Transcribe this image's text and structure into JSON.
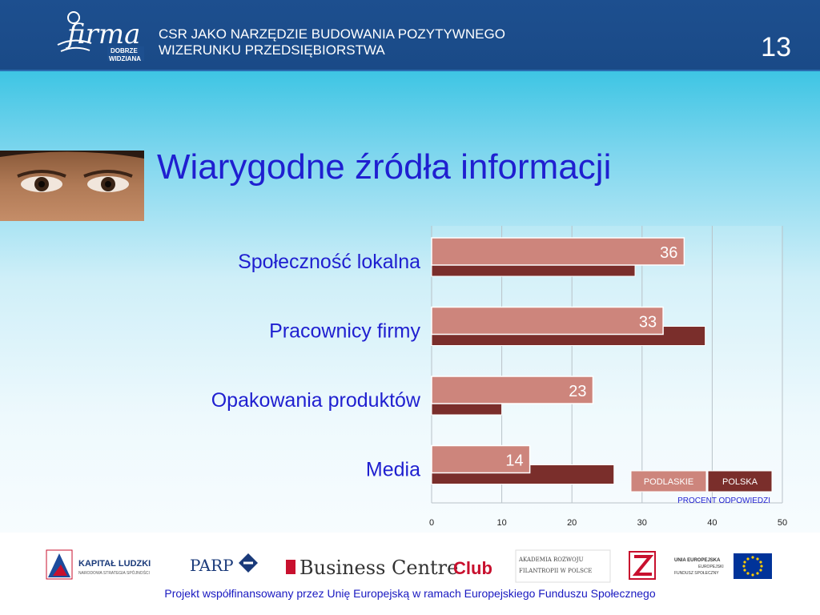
{
  "header": {
    "logo_text": "firma",
    "logo_subtext": [
      "DOBRZE",
      "WIDZIANA"
    ],
    "title_line1": "CSR JAKO NARZĘDZIE  BUDOWANIA POZYTYWNEGO",
    "title_line2": "WIZERUNKU PRZEDSIĘBIORSTWA",
    "page_number": "13"
  },
  "slide": {
    "title": "Wiarygodne źródła informacji"
  },
  "chart_data": {
    "type": "bar",
    "orientation": "horizontal",
    "categories": [
      "Społeczność lokalna",
      "Pracownicy firmy",
      "Opakowania produktów",
      "Media"
    ],
    "series": [
      {
        "name": "PODLASKIE",
        "values": [
          36,
          33,
          23,
          14
        ],
        "color": "#cd857c",
        "labels": [
          "36",
          "33",
          "23",
          "14"
        ]
      },
      {
        "name": "POLSKA",
        "values": [
          29,
          39,
          10,
          26
        ],
        "color": "#7a2e2b"
      }
    ],
    "xlabel": "PROCENT ODPOWIEDZI",
    "xlim": [
      0,
      50
    ],
    "xticks": [
      "0",
      "10",
      "20",
      "30",
      "40",
      "50"
    ],
    "grid": true,
    "legend": "bottom-right"
  },
  "footer": {
    "text": "Projekt współfinansowany przez Unię Europejską w ramach Europejskiego Funduszu Społecznego",
    "logos": {
      "kapital_title": "KAPITAŁ LUDZKI",
      "kapital_sub": "NARODOWA STRATEGIA SPÓJNOŚCI",
      "parp": "PARP",
      "bcc_part1": "Business Centre",
      "bcc_part2": "Club",
      "akademia_1": "AKADEMIA ROZWOJU",
      "akademia_2": "FILANTROPII W POLSCE",
      "ue_1": "UNIA EUROPEJSKA",
      "ue_2": "EUROPEJSKI",
      "ue_3": "FUNDUSZ SPOŁECZNY"
    }
  }
}
